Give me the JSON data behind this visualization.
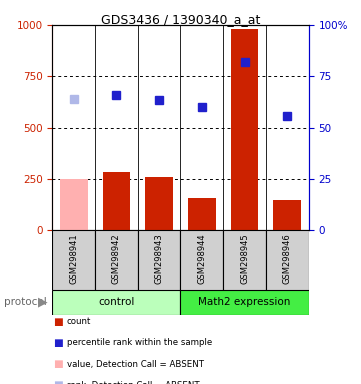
{
  "title": "GDS3436 / 1390340_a_at",
  "samples": [
    "GSM298941",
    "GSM298942",
    "GSM298943",
    "GSM298944",
    "GSM298945",
    "GSM298946"
  ],
  "bar_values": [
    250,
    285,
    260,
    160,
    980,
    150
  ],
  "bar_colors": [
    "#ffb0b0",
    "#cc2200",
    "#cc2200",
    "#cc2200",
    "#cc2200",
    "#cc2200"
  ],
  "rank_values": [
    640,
    660,
    635,
    600,
    820,
    555
  ],
  "rank_colors": [
    "#b0b8e8",
    "#2020cc",
    "#2020cc",
    "#2020cc",
    "#2020cc",
    "#2020cc"
  ],
  "ylim_left": [
    0,
    1000
  ],
  "ylim_right": [
    0,
    100
  ],
  "yticks_left": [
    0,
    250,
    500,
    750,
    1000
  ],
  "yticks_right": [
    0,
    25,
    50,
    75,
    100
  ],
  "ytick_labels_right": [
    "0",
    "25",
    "50",
    "75",
    "100%"
  ],
  "hgrid_vals": [
    250,
    500,
    750
  ],
  "bar_width": 0.65,
  "rank_marker_size": 6,
  "left_tick_color": "#cc2200",
  "right_tick_color": "#0000cc",
  "ctrl_color": "#bbffbb",
  "math_color": "#44ee44",
  "sample_box_color": "#d0d0d0",
  "legend_colors": [
    "#cc2200",
    "#2020cc",
    "#ffb0b0",
    "#b0b8e8"
  ],
  "legend_labels": [
    "count",
    "percentile rank within the sample",
    "value, Detection Call = ABSENT",
    "rank, Detection Call = ABSENT"
  ]
}
